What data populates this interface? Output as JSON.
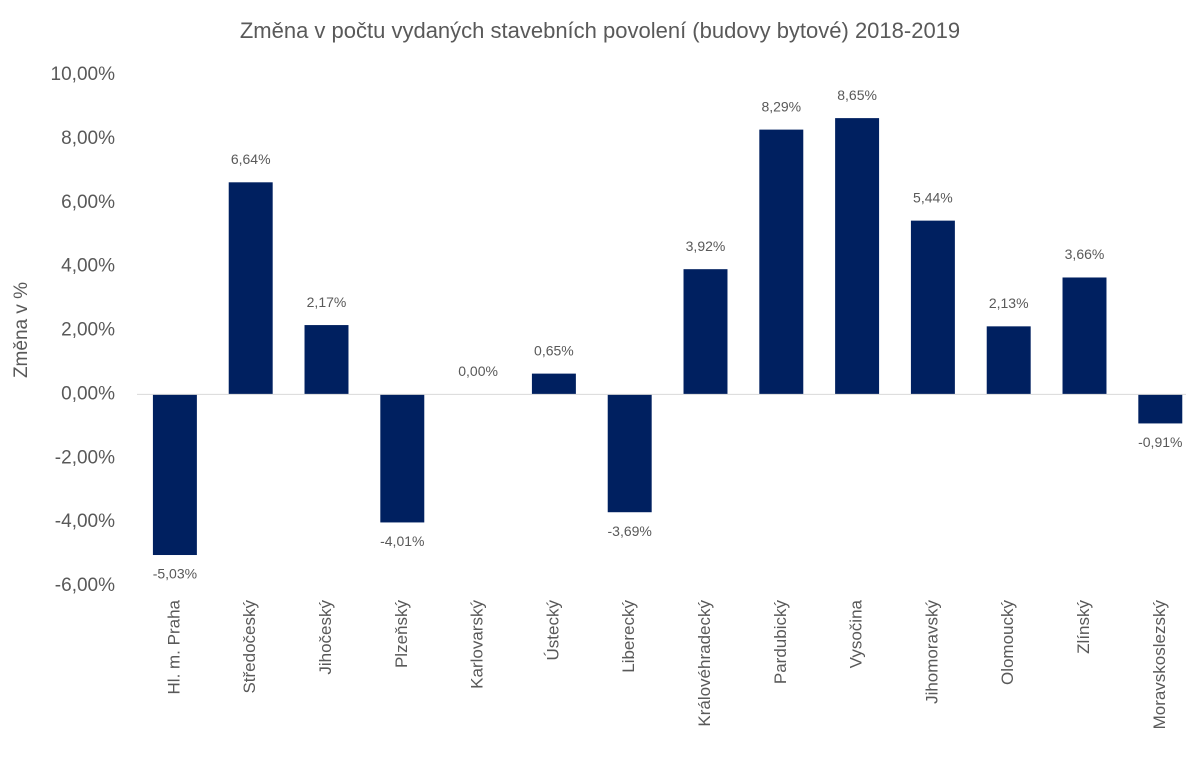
{
  "chart_data": {
    "type": "bar",
    "title": "Změna v počtu vydaných stavebních povolení (budovy bytové) 2018-2019",
    "y_label": "Změna v %",
    "categories": [
      "Hl. m. Praha",
      "Středočeský",
      "Jihočeský",
      "Plzeňský",
      "Karlovarský",
      "Ústecký",
      "Liberecký",
      "Královéhradecký",
      "Pardubický",
      "Vysočina",
      "Jihomoravský",
      "Olomoucký",
      "Zlínský",
      "Moravskoslezský"
    ],
    "values": [
      -5.03,
      6.64,
      2.17,
      -4.01,
      0,
      0.65,
      -3.69,
      3.92,
      8.29,
      8.65,
      5.44,
      2.13,
      3.66,
      -0.91
    ],
    "value_labels": [
      "-5,03%",
      "6,64%",
      "2,17%",
      "-4,01%",
      "0,00%",
      "0,65%",
      "-3,69%",
      "3,92%",
      "8,29%",
      "8,65%",
      "5,44%",
      "2,13%",
      "3,66%",
      "-0,91%"
    ],
    "color": "#002060",
    "ylim": [
      -6,
      10
    ],
    "yticks": [
      {
        "value": -6,
        "label": "-6,00%"
      },
      {
        "value": -4,
        "label": "-4,00%"
      },
      {
        "value": -2,
        "label": "-2,00%"
      },
      {
        "value": 0,
        "label": "0,00%"
      },
      {
        "value": 2,
        "label": "2,00%"
      },
      {
        "value": 4,
        "label": "4,00%"
      },
      {
        "value": 6,
        "label": "6,00%"
      },
      {
        "value": 8,
        "label": "8,00%"
      },
      {
        "value": 10,
        "label": "10,00%"
      }
    ],
    "grid": false
  }
}
